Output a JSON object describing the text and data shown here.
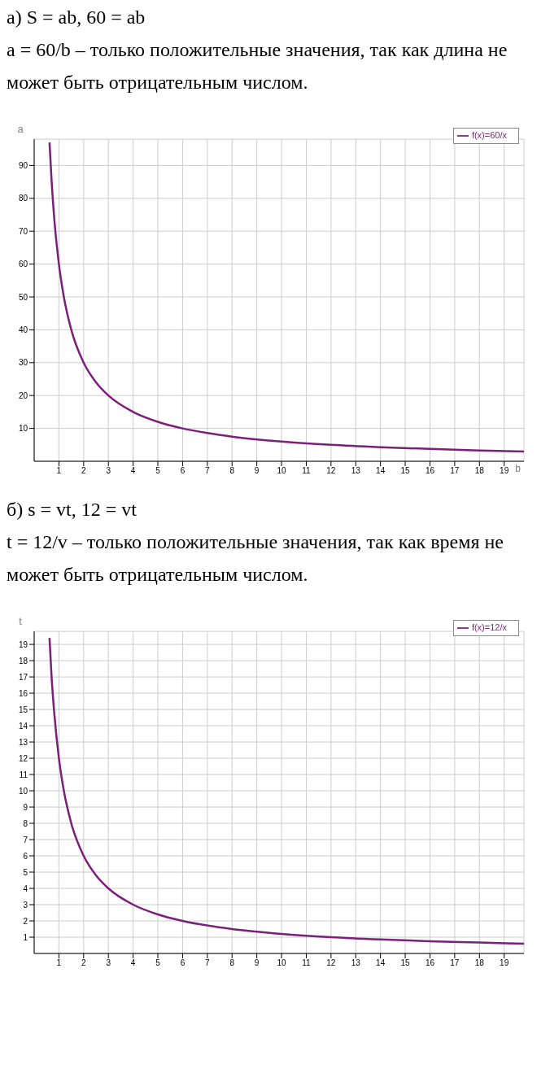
{
  "chart_data": [
    {
      "type": "line",
      "title": "а) S = ab,      60 = ab",
      "subtitle": "a = 60/b – только положительные значения, так как длина не может быть отрицательным числом.",
      "xlabel": "b",
      "ylabel": "a",
      "x": [
        0.62,
        0.7,
        0.8,
        1,
        1.2,
        1.5,
        2,
        2.5,
        3,
        4,
        5,
        6,
        7,
        8,
        10,
        12,
        14,
        16,
        18,
        19.8
      ],
      "series": [
        {
          "name": "f(x)=60/x",
          "color": "#7b1f7b",
          "values": [
            97,
            86,
            75,
            60,
            50,
            40,
            30,
            24,
            20,
            15,
            12,
            10,
            8.6,
            7.5,
            6,
            5,
            4.3,
            3.75,
            3.3,
            3.0
          ]
        }
      ],
      "xlim": [
        0,
        19.8
      ],
      "ylim": [
        0,
        98
      ],
      "xticks": [
        1,
        2,
        3,
        4,
        5,
        6,
        7,
        8,
        9,
        10,
        11,
        12,
        13,
        14,
        15,
        16,
        17,
        18,
        19
      ],
      "yticks": [
        10,
        20,
        30,
        40,
        50,
        60,
        70,
        80,
        90
      ],
      "grid": true,
      "legend": "top right"
    },
    {
      "type": "line",
      "title": "б) s = vt,      12 = vt",
      "subtitle": "t = 12/v – только положительные значения, так как время не может быть отрицательным числом.",
      "ylabel": "t",
      "x": [
        0.62,
        0.7,
        0.8,
        1,
        1.2,
        1.5,
        2,
        2.5,
        3,
        4,
        5,
        6,
        8,
        10,
        12,
        14,
        16,
        18,
        19.8
      ],
      "series": [
        {
          "name": "f(x)=12/x",
          "color": "#7b1f7b",
          "values": [
            19.4,
            17.1,
            15,
            12,
            10,
            8,
            6,
            4.8,
            4,
            3,
            2.4,
            2,
            1.5,
            1.2,
            1,
            0.86,
            0.75,
            0.67,
            0.6
          ]
        }
      ],
      "xlim": [
        0,
        19.8
      ],
      "ylim": [
        0,
        19.8
      ],
      "xticks": [
        1,
        2,
        3,
        4,
        5,
        6,
        7,
        8,
        9,
        10,
        11,
        12,
        13,
        14,
        15,
        16,
        17,
        18,
        19
      ],
      "yticks": [
        1,
        2,
        3,
        4,
        5,
        6,
        7,
        8,
        9,
        10,
        11,
        12,
        13,
        14,
        15,
        16,
        17,
        18,
        19
      ],
      "grid": true,
      "legend": "top right"
    }
  ]
}
